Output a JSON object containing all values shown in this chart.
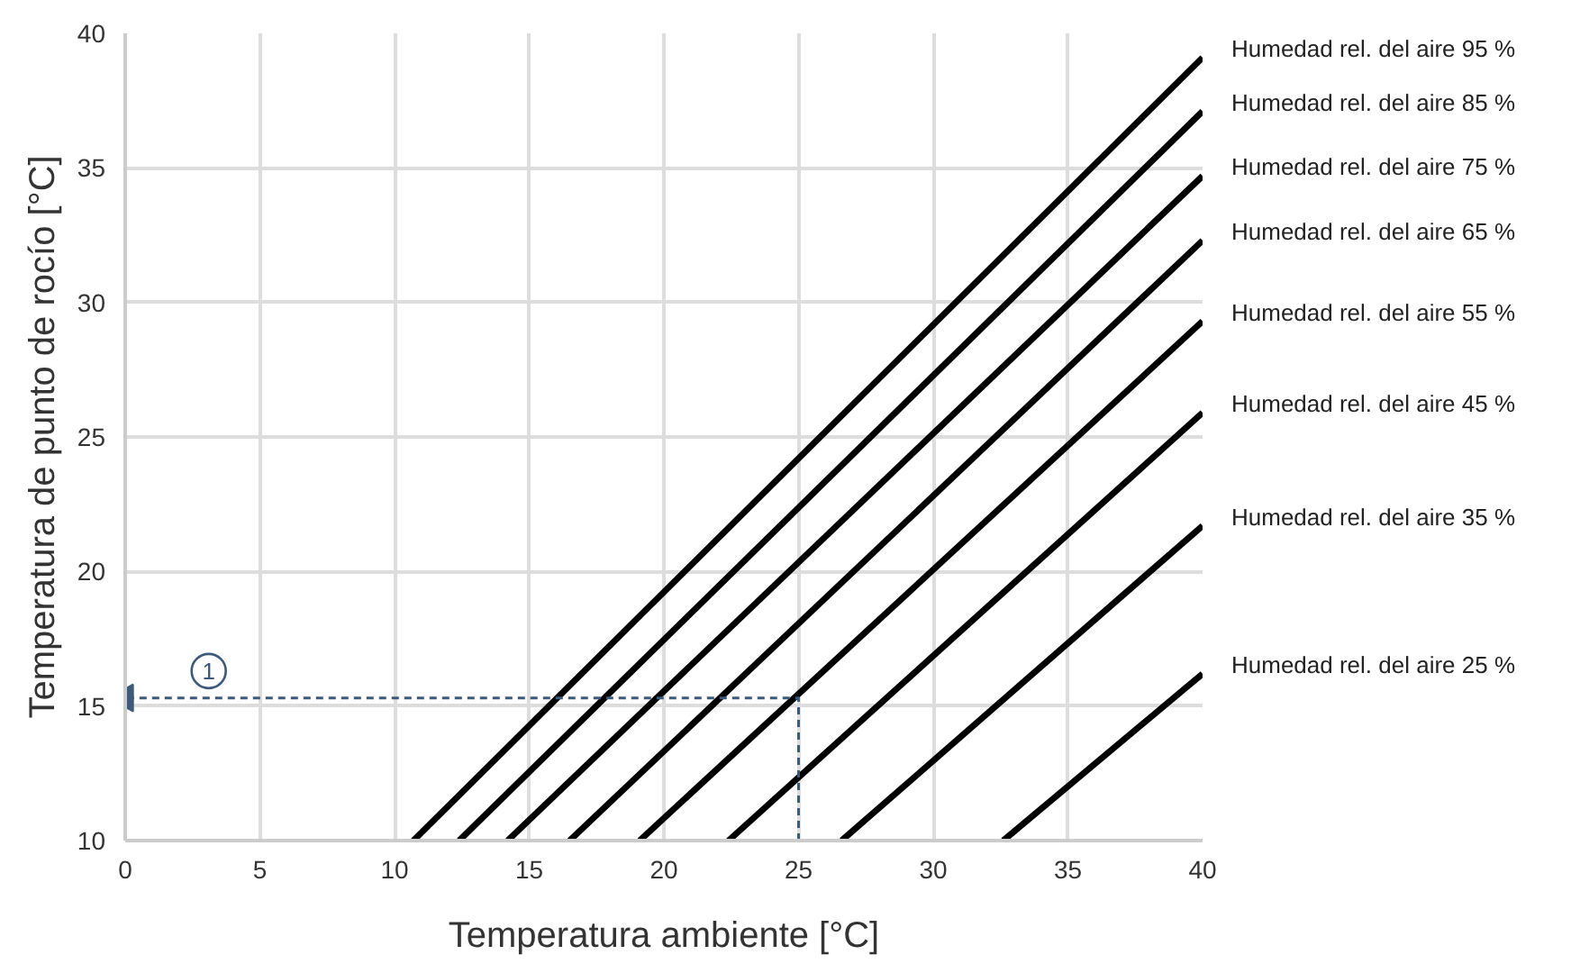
{
  "chart_data": {
    "type": "line",
    "xlabel": "Temperatura ambiente [°C]",
    "ylabel": "Temperatura de punto de rocío [°C]",
    "xlim": [
      0,
      40
    ],
    "ylim": [
      10,
      40
    ],
    "xticks": [
      0,
      5,
      10,
      15,
      20,
      25,
      30,
      35,
      40
    ],
    "yticks": [
      10,
      15,
      20,
      25,
      30,
      35,
      40
    ],
    "grid": true,
    "marker": "none",
    "line_style": "solid",
    "series": [
      {
        "name": "Humedad rel. del aire 95 %",
        "color": "#000000",
        "x": [
          10.7,
          40
        ],
        "values": [
          10,
          39.1
        ]
      },
      {
        "name": "Humedad rel. del aire 85 %",
        "color": "#000000",
        "x": [
          12.4,
          40
        ],
        "values": [
          10,
          37.1
        ]
      },
      {
        "name": "Humedad rel. del aire 75 %",
        "color": "#000000",
        "x": [
          14.2,
          40
        ],
        "values": [
          10,
          34.7
        ]
      },
      {
        "name": "Humedad rel. del aire 65 %",
        "color": "#000000",
        "x": [
          16.5,
          40
        ],
        "values": [
          10,
          32.3
        ]
      },
      {
        "name": "Humedad rel. del aire 55 %",
        "color": "#000000",
        "x": [
          19.1,
          40
        ],
        "values": [
          10,
          29.3
        ]
      },
      {
        "name": "Humedad rel. del aire 45 %",
        "color": "#000000",
        "x": [
          22.4,
          40
        ],
        "values": [
          10,
          25.9
        ]
      },
      {
        "name": "Humedad rel. del aire 35 %",
        "color": "#000000",
        "x": [
          26.6,
          40
        ],
        "values": [
          10,
          21.7
        ]
      },
      {
        "name": "Humedad rel. del aire 25 %",
        "color": "#000000",
        "x": [
          32.6,
          40
        ],
        "values": [
          10,
          16.2
        ]
      },
      {
        "color": "#3d5a7a",
        "line_style": "dashed",
        "x": [
          25,
          25,
          0
        ],
        "values": [
          10,
          15.3,
          15.3
        ]
      }
    ],
    "annotations": [
      {
        "text": "1",
        "x": 3.1,
        "y": 16.3
      }
    ]
  }
}
